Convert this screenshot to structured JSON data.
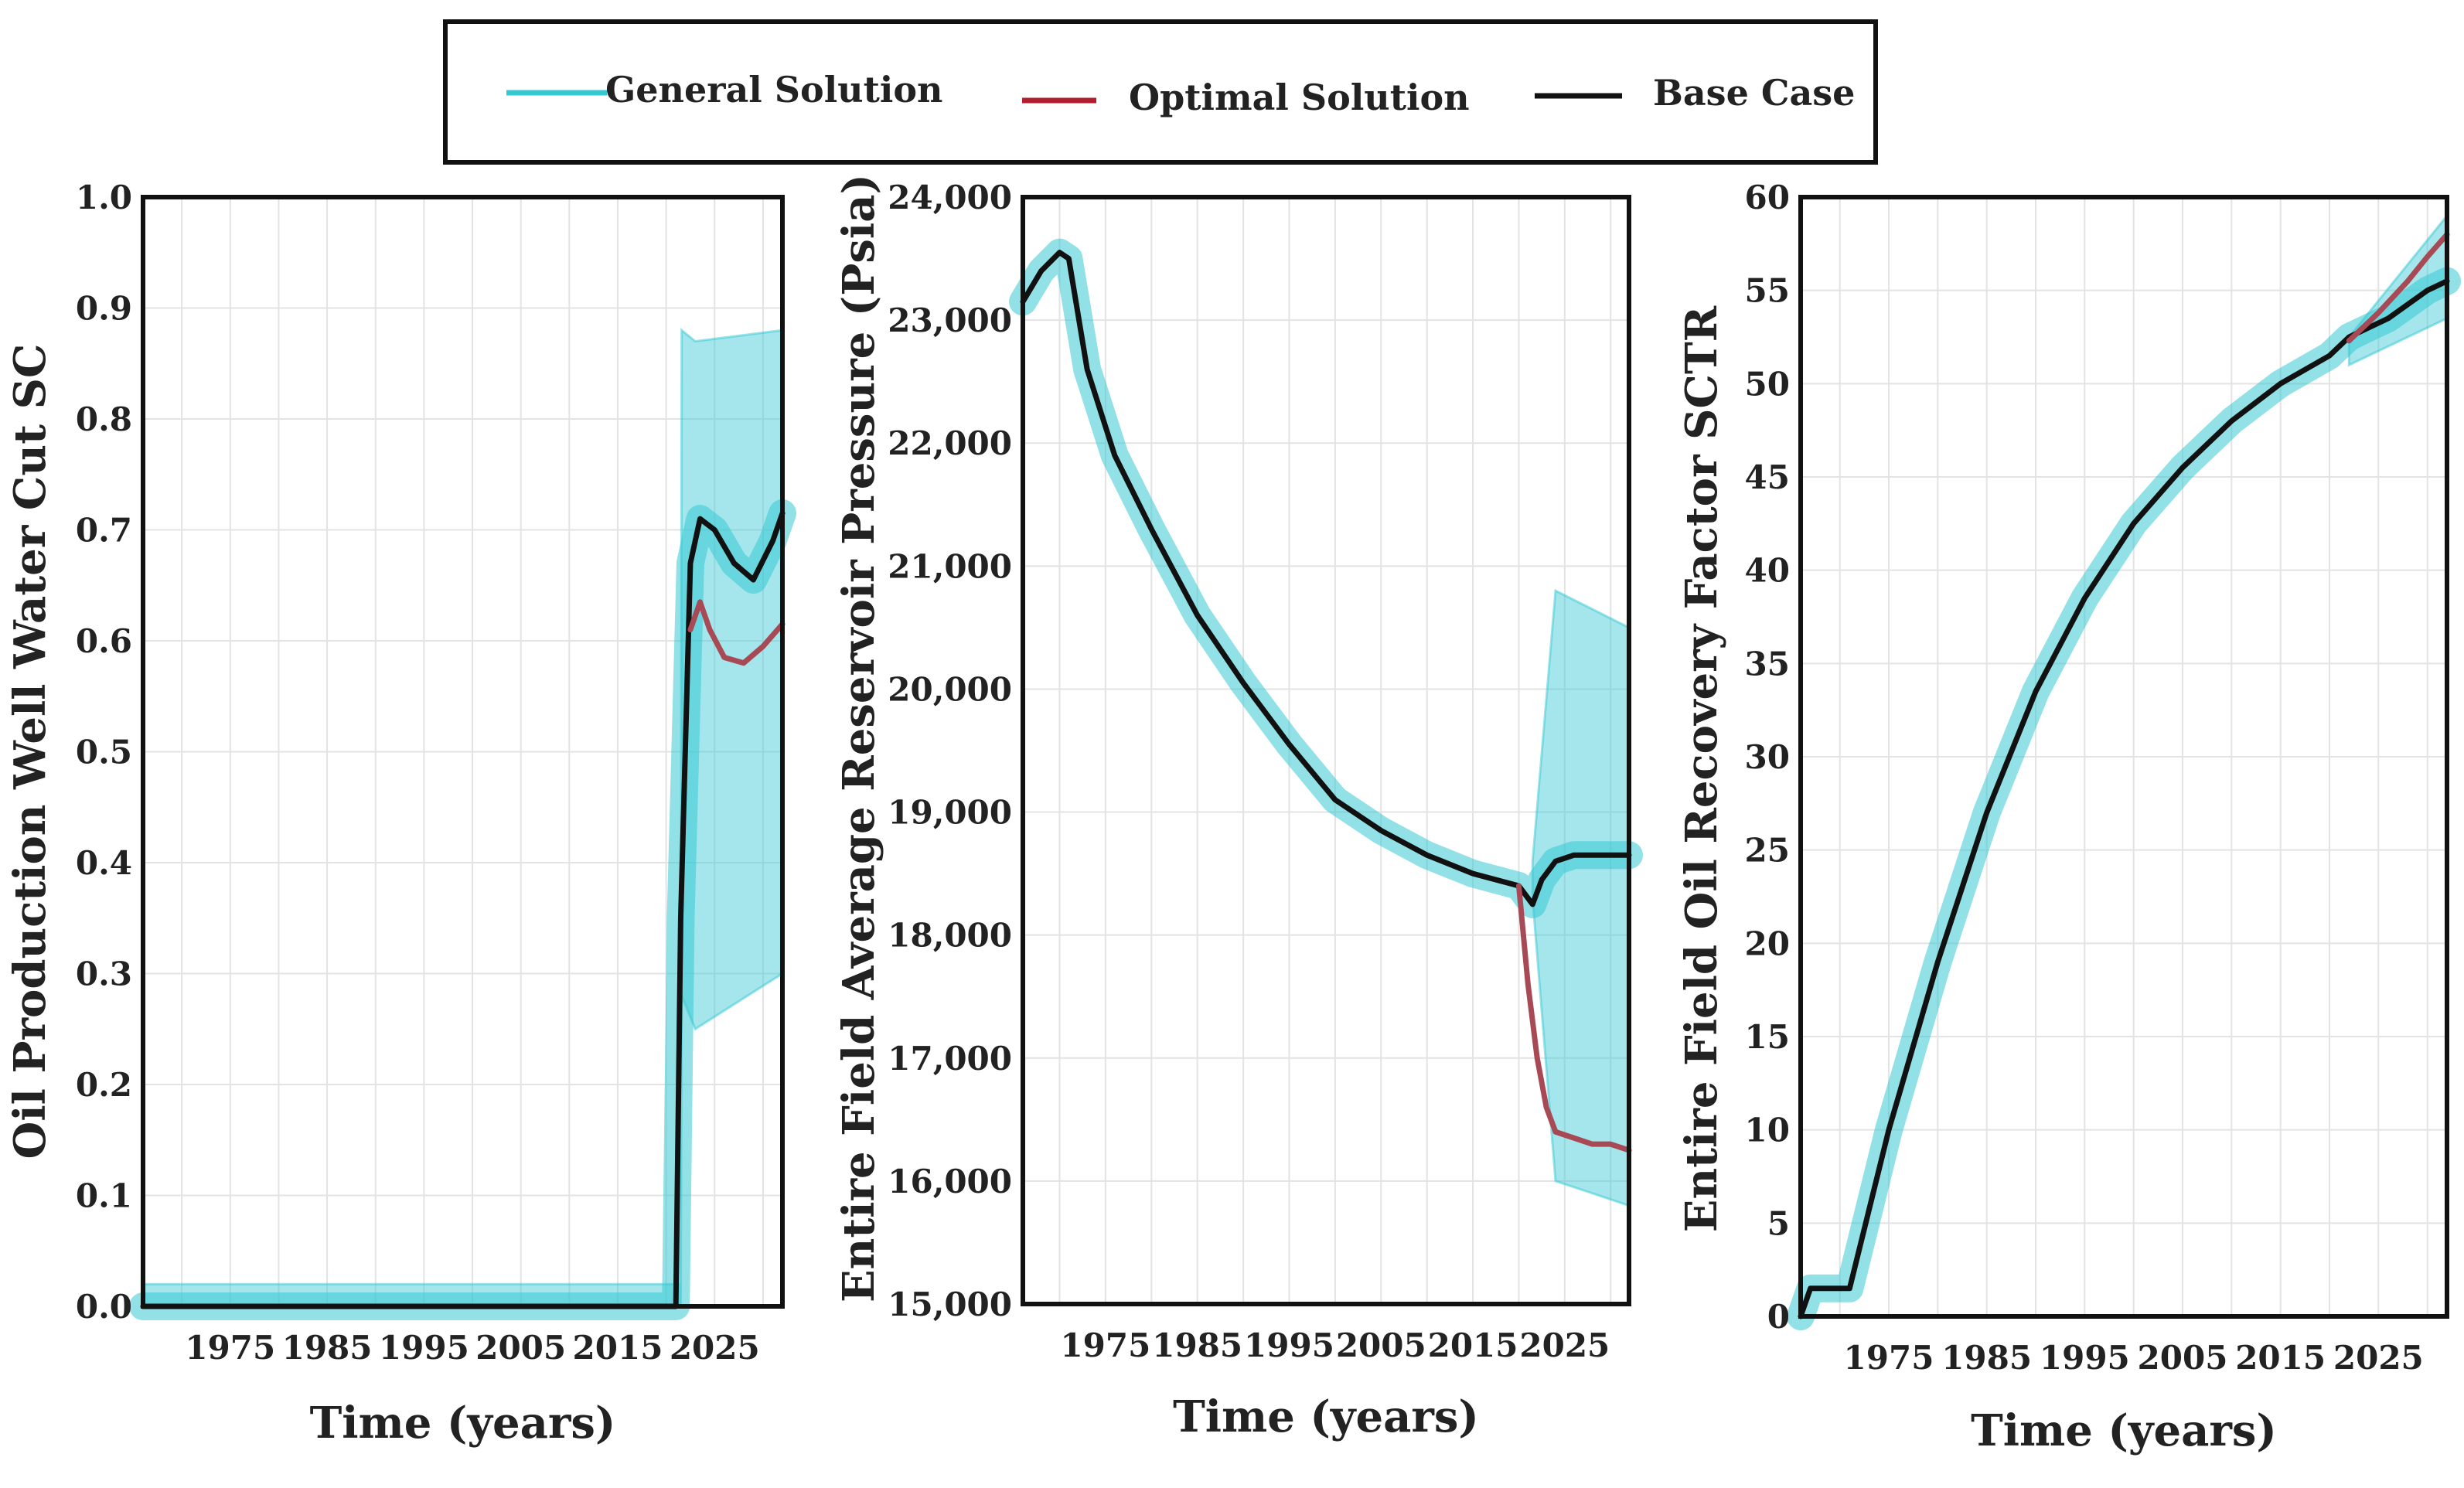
{
  "legend": {
    "items": [
      {
        "label": "General Solution",
        "color": "#36c8d3"
      },
      {
        "label": "Optimal Solution",
        "color": "#b01e2f"
      },
      {
        "label": "Base Case",
        "color": "#111111"
      }
    ]
  },
  "chart_data": [
    {
      "type": "line",
      "ylabel": "Oil Production Well Water Cut SC",
      "xlabel": "Time (years)",
      "xlim": [
        1966,
        2032
      ],
      "ylim": [
        0,
        1
      ],
      "xticks": [
        1975,
        1985,
        1995,
        2005,
        2015,
        2025
      ],
      "yticks": [
        "0.0",
        "0.1",
        "0.2",
        "0.3",
        "0.4",
        "0.5",
        "0.6",
        "0.7",
        "0.8",
        "0.9",
        "1.0"
      ],
      "grid": true,
      "general_band": {
        "x": [
          1966,
          2021.5,
          2021.6,
          2023,
          2032
        ],
        "low": [
          0,
          0,
          0.28,
          0.25,
          0.3
        ],
        "high": [
          0.02,
          0.02,
          0.88,
          0.87,
          0.88
        ]
      },
      "series": [
        {
          "name": "Base Case",
          "color": "#111111",
          "x": [
            1966,
            2021,
            2021.5,
            2022.5,
            2023.5,
            2025,
            2027,
            2029,
            2031,
            2032
          ],
          "y": [
            0,
            0,
            0.35,
            0.67,
            0.71,
            0.7,
            0.67,
            0.655,
            0.69,
            0.715
          ]
        },
        {
          "name": "Optimal Solution",
          "color": "#a84a55",
          "x": [
            2022.5,
            2023.5,
            2024.5,
            2026,
            2028,
            2030,
            2032
          ],
          "y": [
            0.61,
            0.635,
            0.61,
            0.585,
            0.58,
            0.595,
            0.615
          ]
        }
      ]
    },
    {
      "type": "line",
      "ylabel": "Entire Field Average Reservoir Pressure (Psia)",
      "xlabel": "Time (years)",
      "xlim": [
        1966,
        2032
      ],
      "ylim": [
        15000,
        24000
      ],
      "xticks": [
        1975,
        1985,
        1995,
        2005,
        2015,
        2025
      ],
      "yticks": [
        "15,000",
        "16,000",
        "17,000",
        "18,000",
        "19,000",
        "20,000",
        "21,000",
        "22,000",
        "23,000",
        "24,000"
      ],
      "grid": true,
      "general_band": {
        "x": [
          2021.5,
          2024,
          2032
        ],
        "low": [
          18300,
          16000,
          15800
        ],
        "high": [
          18600,
          20800,
          20500
        ]
      },
      "series": [
        {
          "name": "Base Case",
          "color": "#111111",
          "x": [
            1966,
            1968,
            1970,
            1971,
            1973,
            1976,
            1980,
            1985,
            1990,
            1995,
            2000,
            2005,
            2010,
            2015,
            2020,
            2021.5,
            2022.5,
            2024,
            2026,
            2032
          ],
          "y": [
            23150,
            23400,
            23550,
            23500,
            22600,
            21900,
            21300,
            20600,
            20050,
            19550,
            19100,
            18850,
            18650,
            18500,
            18400,
            18250,
            18450,
            18600,
            18650,
            18650
          ]
        },
        {
          "name": "Optimal Solution",
          "color": "#a84a55",
          "x": [
            2020,
            2021,
            2022,
            2023,
            2024,
            2026,
            2028,
            2030,
            2032
          ],
          "y": [
            18400,
            17600,
            17000,
            16600,
            16400,
            16350,
            16300,
            16300,
            16250
          ]
        }
      ]
    },
    {
      "type": "line",
      "ylabel": "Entire Field Oil Recovery Factor SCTR",
      "xlabel": "Time (years)",
      "xlim": [
        1966,
        2032
      ],
      "ylim": [
        0,
        60
      ],
      "xticks": [
        1975,
        1985,
        1995,
        2005,
        2015,
        2025
      ],
      "yticks": [
        "0",
        "5",
        "10",
        "15",
        "20",
        "25",
        "30",
        "35",
        "40",
        "45",
        "50",
        "55",
        "60"
      ],
      "grid": true,
      "general_band": {
        "x": [
          2022,
          2032
        ],
        "low": [
          51,
          53.5
        ],
        "high": [
          52.5,
          59
        ]
      },
      "series": [
        {
          "name": "Base Case",
          "color": "#111111",
          "x": [
            1966,
            1967,
            1971,
            1975,
            1980,
            1985,
            1990,
            1995,
            2000,
            2005,
            2010,
            2015,
            2020,
            2022,
            2026,
            2030,
            2032
          ],
          "y": [
            0,
            1.5,
            1.5,
            10,
            19,
            27,
            33.5,
            38.5,
            42.5,
            45.5,
            48,
            50,
            51.5,
            52.5,
            53.5,
            55,
            55.5
          ]
        },
        {
          "name": "Optimal Solution",
          "color": "#a84a55",
          "x": [
            2022,
            2025,
            2028,
            2030,
            2032
          ],
          "y": [
            52.3,
            53.8,
            55.5,
            56.8,
            58
          ]
        }
      ]
    }
  ]
}
